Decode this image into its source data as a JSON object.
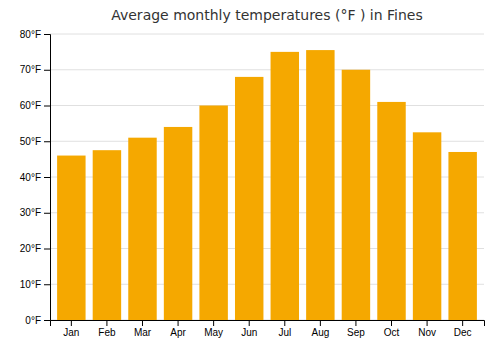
{
  "chart_data": {
    "type": "bar",
    "title": "Average monthly temperatures (°F ) in Fines",
    "categories": [
      "Jan",
      "Feb",
      "Mar",
      "Apr",
      "May",
      "Jun",
      "Jul",
      "Aug",
      "Sep",
      "Oct",
      "Nov",
      "Dec"
    ],
    "values": [
      46,
      47.5,
      51,
      54,
      60,
      68,
      75,
      75.5,
      70,
      61,
      52.5,
      47
    ],
    "color": "#F5A800",
    "ylim": [
      0,
      80
    ],
    "yticks": [
      {
        "value": 0,
        "label": "0°F"
      },
      {
        "value": 10,
        "label": "10°F"
      },
      {
        "value": 20,
        "label": "20°F"
      },
      {
        "value": 30,
        "label": "30°F"
      },
      {
        "value": 40,
        "label": "40°F"
      },
      {
        "value": 50,
        "label": "50°F"
      },
      {
        "value": 60,
        "label": "60°F"
      },
      {
        "value": 70,
        "label": "70°F"
      },
      {
        "value": 80,
        "label": "80°F"
      }
    ],
    "grid": true
  }
}
